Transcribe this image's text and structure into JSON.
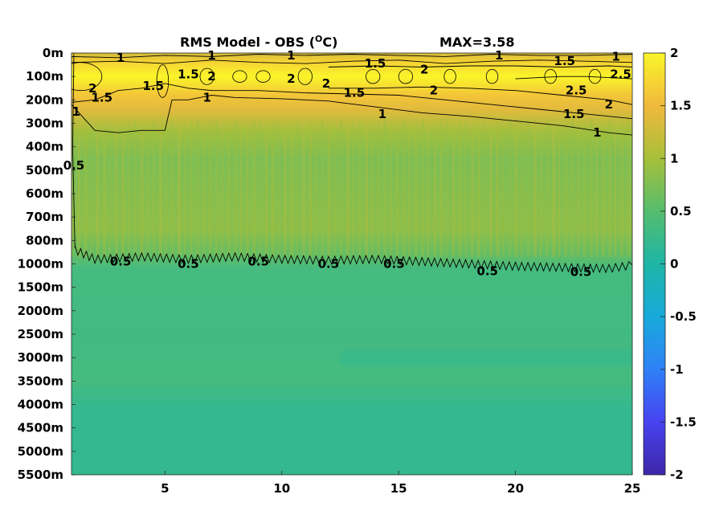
{
  "colors": {
    "colormap": [
      "#3e26a8",
      "#4743f0",
      "#2f81f7",
      "#18aadb",
      "#1eb5a6",
      "#55bd6e",
      "#a7bf3a",
      "#f1b93c",
      "#faf52a"
    ],
    "contour_line": "#000000"
  },
  "chart_data": {
    "type": "heatmap",
    "title_main": "RMS Model - OBS (",
    "title_unit_super": "O",
    "title_unit_end": "C)",
    "title_max": "MAX=3.58",
    "x_ticks": [
      "5",
      "10",
      "15",
      "20",
      "25"
    ],
    "x_range": [
      1,
      25
    ],
    "y_ticks": [
      "0m",
      "100m",
      "200m",
      "300m",
      "400m",
      "500m",
      "600m",
      "700m",
      "800m",
      "1000m",
      "1500m",
      "2000m",
      "2500m",
      "3000m",
      "3500m",
      "4000m",
      "4500m",
      "5000m",
      "5500m"
    ],
    "colorbar_ticks": [
      "2",
      "1.5",
      "1",
      "0.5",
      "0",
      "-0.5",
      "-1",
      "-1.5",
      "-2"
    ],
    "colorbar_range": [
      -2,
      2
    ],
    "contour_levels": [
      0.5,
      1,
      1.5,
      2,
      2.5
    ],
    "approx_field": {
      "description_x": "x from 1 to 25",
      "surface_0m": 1.3,
      "layer_50_200m": 2.2,
      "layer_200_300m": 1.4,
      "layer_300_900m": 0.75,
      "layer_1000_3000m": 0.35,
      "layer_3500_5500m": 0.2
    },
    "contour_labels": [
      {
        "text": "1",
        "x": 3.1,
        "y": 0.2
      },
      {
        "text": "1",
        "x": 7.0,
        "y": 0.1
      },
      {
        "text": "1",
        "x": 10.4,
        "y": 0.1
      },
      {
        "text": "1.5",
        "x": 14.0,
        "y": 0.45
      },
      {
        "text": "1",
        "x": 19.3,
        "y": 0.1
      },
      {
        "text": "1.5",
        "x": 22.1,
        "y": 0.35
      },
      {
        "text": "1",
        "x": 24.3,
        "y": 0.15
      },
      {
        "text": "2",
        "x": 1.9,
        "y": 1.5
      },
      {
        "text": "1.5",
        "x": 2.3,
        "y": 1.9
      },
      {
        "text": "1.5",
        "x": 4.5,
        "y": 1.4
      },
      {
        "text": "1.5",
        "x": 6.0,
        "y": 0.9
      },
      {
        "text": "2",
        "x": 7.0,
        "y": 1.0
      },
      {
        "text": "1",
        "x": 6.8,
        "y": 1.9
      },
      {
        "text": "1",
        "x": 1.2,
        "y": 2.5
      },
      {
        "text": "2",
        "x": 10.4,
        "y": 1.1
      },
      {
        "text": "2",
        "x": 11.9,
        "y": 1.3
      },
      {
        "text": "1.5",
        "x": 13.1,
        "y": 1.7
      },
      {
        "text": "2",
        "x": 16.1,
        "y": 0.7
      },
      {
        "text": "2",
        "x": 16.5,
        "y": 1.6
      },
      {
        "text": "2.5",
        "x": 22.6,
        "y": 1.6
      },
      {
        "text": "2.5",
        "x": 24.5,
        "y": 0.9
      },
      {
        "text": "2",
        "x": 24.0,
        "y": 2.2
      },
      {
        "text": "1.5",
        "x": 22.5,
        "y": 2.6
      },
      {
        "text": "1",
        "x": 14.3,
        "y": 2.6
      },
      {
        "text": "1",
        "x": 23.5,
        "y": 3.4
      },
      {
        "text": "0.5",
        "x": 1.1,
        "y": 4.8
      },
      {
        "text": "0.5",
        "x": 3.1,
        "y": 8.9
      },
      {
        "text": "0.5",
        "x": 6.0,
        "y": 9.0
      },
      {
        "text": "0.5",
        "x": 9.0,
        "y": 8.9
      },
      {
        "text": "0.5",
        "x": 12.0,
        "y": 9.0
      },
      {
        "text": "0.5",
        "x": 14.8,
        "y": 9.0
      },
      {
        "text": "0.5",
        "x": 18.8,
        "y": 9.3
      },
      {
        "text": "0.5",
        "x": 22.8,
        "y": 9.35
      }
    ],
    "contour_paths": [
      {
        "level": 0.5,
        "points": [
          [
            1.1,
            0.0
          ],
          [
            1.05,
            4.0
          ],
          [
            1.15,
            8.4
          ],
          [
            2,
            8.8
          ],
          [
            4,
            8.7
          ],
          [
            6,
            8.8
          ],
          [
            8,
            8.7
          ],
          [
            10,
            8.8
          ],
          [
            12,
            8.85
          ],
          [
            14,
            8.8
          ],
          [
            16,
            8.9
          ],
          [
            18,
            9.0
          ],
          [
            20,
            9.1
          ],
          [
            22,
            9.15
          ],
          [
            24,
            9.2
          ],
          [
            25,
            9.05
          ]
        ],
        "wiggle": true
      },
      {
        "level": 1,
        "points": [
          [
            1,
            2.2
          ],
          [
            2,
            3.3
          ],
          [
            3,
            3.4
          ],
          [
            4,
            3.3
          ],
          [
            5,
            3.3
          ],
          [
            5.3,
            2.0
          ],
          [
            6,
            2.0
          ],
          [
            7,
            1.8
          ],
          [
            8,
            1.9
          ],
          [
            10,
            1.95
          ],
          [
            12,
            2.05
          ],
          [
            14,
            2.3
          ],
          [
            16,
            2.55
          ],
          [
            18,
            2.7
          ],
          [
            20,
            2.9
          ],
          [
            22,
            3.1
          ],
          [
            24,
            3.4
          ],
          [
            25,
            3.5
          ]
        ],
        "wiggle": false
      },
      {
        "level": 1,
        "points": [
          [
            1,
            0.15
          ],
          [
            3,
            0.2
          ],
          [
            5,
            0.1
          ],
          [
            7,
            0.15
          ],
          [
            9,
            0.05
          ],
          [
            11,
            0.1
          ],
          [
            13,
            0.05
          ],
          [
            15,
            0.1
          ],
          [
            17,
            0.15
          ],
          [
            19,
            0.05
          ],
          [
            21,
            0.1
          ],
          [
            23,
            0.1
          ],
          [
            25,
            0.05
          ]
        ],
        "wiggle": false
      },
      {
        "level": 1.5,
        "points": [
          [
            1,
            2.1
          ],
          [
            2,
            2.0
          ],
          [
            3,
            1.6
          ],
          [
            4,
            1.5
          ],
          [
            5,
            1.3
          ],
          [
            6,
            1.5
          ],
          [
            7,
            1.6
          ],
          [
            9,
            1.6
          ],
          [
            11,
            1.7
          ],
          [
            13,
            1.75
          ],
          [
            15,
            1.8
          ],
          [
            17,
            2.0
          ],
          [
            19,
            2.2
          ],
          [
            21,
            2.4
          ],
          [
            23,
            2.6
          ],
          [
            25,
            2.8
          ]
        ],
        "wiggle": false
      },
      {
        "level": 1.5,
        "points": [
          [
            1,
            0.4
          ],
          [
            3,
            0.35
          ],
          [
            5,
            0.45
          ],
          [
            7,
            0.3
          ],
          [
            9,
            0.4
          ],
          [
            11,
            0.45
          ],
          [
            13,
            0.35
          ],
          [
            15,
            0.3
          ],
          [
            17,
            0.45
          ],
          [
            19,
            0.35
          ],
          [
            21,
            0.3
          ],
          [
            23,
            0.35
          ],
          [
            25,
            0.4
          ]
        ],
        "wiggle": false
      },
      {
        "level": 2,
        "points": [
          [
            12,
            1.5
          ],
          [
            14,
            1.5
          ],
          [
            16,
            1.45
          ],
          [
            18,
            1.5
          ],
          [
            20,
            1.6
          ],
          [
            22,
            1.8
          ],
          [
            24,
            2.0
          ],
          [
            25,
            2.2
          ]
        ],
        "wiggle": false
      },
      {
        "level": 2,
        "points": [
          [
            12,
            0.6
          ],
          [
            14,
            0.55
          ],
          [
            16,
            0.6
          ],
          [
            18,
            0.55
          ],
          [
            20,
            0.55
          ],
          [
            22,
            0.6
          ],
          [
            24,
            0.55
          ],
          [
            25,
            0.6
          ]
        ],
        "wiggle": false
      },
      {
        "level": 2.5,
        "points": [
          [
            20,
            1.1
          ],
          [
            21,
            1.05
          ],
          [
            22,
            1.0
          ],
          [
            23,
            1.0
          ],
          [
            24,
            1.05
          ],
          [
            25,
            1.1
          ]
        ],
        "wiggle": false
      }
    ],
    "ellipses": [
      {
        "cx": 1.4,
        "cy": 1.0,
        "rx": 0.9,
        "ry": 0.6
      },
      {
        "cx": 4.9,
        "cy": 1.2,
        "rx": 0.25,
        "ry": 0.7
      },
      {
        "cx": 6.8,
        "cy": 1.0,
        "rx": 0.3,
        "ry": 0.35
      },
      {
        "cx": 8.2,
        "cy": 1.0,
        "rx": 0.3,
        "ry": 0.25
      },
      {
        "cx": 9.2,
        "cy": 1.0,
        "rx": 0.3,
        "ry": 0.25
      },
      {
        "cx": 11.0,
        "cy": 1.0,
        "rx": 0.3,
        "ry": 0.35
      },
      {
        "cx": 13.9,
        "cy": 1.0,
        "rx": 0.3,
        "ry": 0.3
      },
      {
        "cx": 15.3,
        "cy": 1.0,
        "rx": 0.3,
        "ry": 0.3
      },
      {
        "cx": 17.2,
        "cy": 1.0,
        "rx": 0.25,
        "ry": 0.3
      },
      {
        "cx": 19.0,
        "cy": 1.0,
        "rx": 0.25,
        "ry": 0.3
      },
      {
        "cx": 21.5,
        "cy": 1.0,
        "rx": 0.25,
        "ry": 0.3
      },
      {
        "cx": 23.4,
        "cy": 1.0,
        "rx": 0.25,
        "ry": 0.3
      }
    ]
  }
}
